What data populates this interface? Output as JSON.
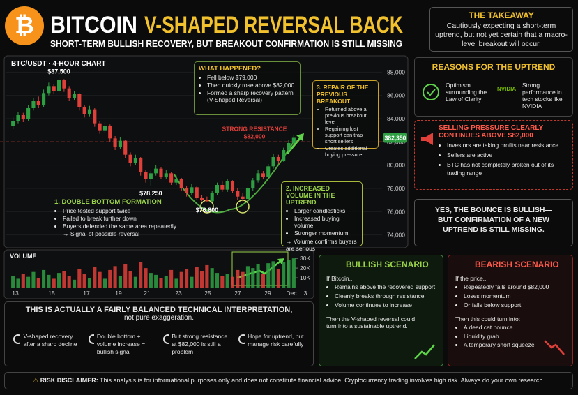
{
  "header": {
    "title_main": "BITCOIN",
    "title_accent": "V-SHAPED REVERSAL BACK",
    "subtitle": "SHORT-TERM BULLISH RECOVERY, BUT BREAKOUT CONFIRMATION IS STILL MISSING"
  },
  "takeaway": {
    "title": "THE TAKEAWAY",
    "text": "Cautiously expecting a short-term uptrend, but not yet certain that a macro-level breakout will occur."
  },
  "chart_data": {
    "type": "candlestick",
    "title": "BTC/USDT · 4-HOUR CHART",
    "up_color": "#2ea043",
    "down_color": "#e0403a",
    "grid": true,
    "ohlc": [
      [
        83400,
        84100,
        83100,
        83800
      ],
      [
        83800,
        84600,
        83600,
        84300
      ],
      [
        84300,
        84500,
        83700,
        84000
      ],
      [
        84000,
        85200,
        83800,
        84900
      ],
      [
        84900,
        85800,
        84700,
        85500
      ],
      [
        85500,
        85900,
        84900,
        85200
      ],
      [
        85200,
        86500,
        85000,
        86200
      ],
      [
        86200,
        87100,
        86000,
        86800
      ],
      [
        86800,
        87000,
        86100,
        86400
      ],
      [
        86400,
        87500,
        86200,
        87300
      ],
      [
        87300,
        87400,
        86300,
        86600
      ],
      [
        86600,
        86800,
        85500,
        85800
      ],
      [
        85800,
        86400,
        85600,
        86100
      ],
      [
        86100,
        86200,
        84700,
        85000
      ],
      [
        85000,
        85200,
        84100,
        84400
      ],
      [
        84400,
        85100,
        84200,
        84800
      ],
      [
        84800,
        84900,
        83300,
        83600
      ],
      [
        83600,
        83800,
        82700,
        83000
      ],
      [
        83000,
        83700,
        82800,
        83400
      ],
      [
        83400,
        83500,
        82000,
        82300
      ],
      [
        82300,
        82500,
        81300,
        81600
      ],
      [
        81600,
        82400,
        81400,
        82100
      ],
      [
        82100,
        82200,
        80600,
        80900
      ],
      [
        80900,
        81100,
        79900,
        80200
      ],
      [
        80200,
        80900,
        80000,
        80600
      ],
      [
        80600,
        80700,
        79100,
        79400
      ],
      [
        79400,
        79600,
        78500,
        78800
      ],
      [
        78800,
        79500,
        78250,
        79300
      ],
      [
        79300,
        80000,
        79100,
        79700
      ],
      [
        79700,
        79800,
        78800,
        79000
      ],
      [
        79000,
        79600,
        78800,
        79300
      ],
      [
        79300,
        79400,
        78300,
        78500
      ],
      [
        78500,
        79100,
        78300,
        78800
      ],
      [
        78800,
        78900,
        77800,
        78000
      ],
      [
        78000,
        78200,
        77300,
        77600
      ],
      [
        77600,
        78400,
        77400,
        78100
      ],
      [
        78100,
        78200,
        77000,
        77200
      ],
      [
        77200,
        77400,
        76900,
        77000
      ],
      [
        77000,
        77300,
        76800,
        76900
      ],
      [
        76900,
        77800,
        76850,
        77600
      ],
      [
        77600,
        78500,
        77400,
        78300
      ],
      [
        78300,
        78600,
        77700,
        77900
      ],
      [
        77900,
        78800,
        77700,
        78600
      ],
      [
        78600,
        78700,
        77600,
        77800
      ],
      [
        77800,
        78000,
        77000,
        77300
      ],
      [
        77300,
        77600,
        76900,
        77100
      ],
      [
        77100,
        78200,
        77000,
        78000
      ],
      [
        78000,
        78900,
        77800,
        78700
      ],
      [
        78700,
        79600,
        78500,
        79300
      ],
      [
        79300,
        79500,
        78800,
        79000
      ],
      [
        79000,
        80100,
        78900,
        79900
      ],
      [
        79900,
        81000,
        79700,
        80700
      ],
      [
        80700,
        80900,
        80100,
        80400
      ],
      [
        80400,
        81500,
        80300,
        81300
      ],
      [
        81300,
        82200,
        81100,
        81900
      ],
      [
        81900,
        82600,
        81700,
        82350
      ]
    ],
    "ylim": [
      73200,
      88800
    ],
    "yticks": [
      {
        "value": 74000,
        "label": "74,000"
      },
      {
        "value": 76000,
        "label": "76,000"
      },
      {
        "value": 78000,
        "label": "78,000"
      },
      {
        "value": 80000,
        "label": "80,000"
      },
      {
        "value": 82000,
        "label": "82,000"
      },
      {
        "value": 84000,
        "label": "84,000"
      },
      {
        "value": 86000,
        "label": "86,000"
      },
      {
        "value": 88000,
        "label": "88,000"
      }
    ],
    "resistance": {
      "value": 82000,
      "title": "STRONG RESISTANCE",
      "label": "$82,000",
      "color": "#e0403a"
    },
    "last_price": {
      "value": 82350,
      "label": "$82,350"
    },
    "annotations": [
      {
        "value": 87500,
        "label": "$87,500"
      },
      {
        "value": 78250,
        "label": "$78,250"
      },
      {
        "value": 76800,
        "label": "$76,800"
      }
    ],
    "x_labels": [
      "13",
      "15",
      "17",
      "19",
      "21",
      "23",
      "25",
      "27",
      "29",
      "Dec",
      "3"
    ],
    "volume": {
      "title": "VOLUME",
      "ylim": [
        0,
        33000
      ],
      "yticks": [
        {
          "value": 10000,
          "label": "10K"
        },
        {
          "value": 20000,
          "label": "20K"
        },
        {
          "value": 30000,
          "label": "30K"
        }
      ],
      "values": [
        12000,
        9000,
        14000,
        11000,
        16000,
        10000,
        18000,
        13000,
        9000,
        15000,
        17000,
        12000,
        8000,
        19000,
        14000,
        10000,
        21000,
        16000,
        9000,
        18000,
        22000,
        12000,
        24000,
        17000,
        11000,
        26000,
        20000,
        15000,
        13000,
        10000,
        12000,
        18000,
        9000,
        16000,
        19000,
        11000,
        21000,
        17000,
        23000,
        20000,
        15000,
        12000,
        14000,
        11000,
        18000,
        16000,
        22000,
        20000,
        24000,
        14000,
        25000,
        27000,
        19000,
        26000,
        28000,
        30000
      ]
    }
  },
  "what_happened": {
    "title": "WHAT HAPPENED?",
    "items": [
      "Fell below $79,000",
      "Then quickly rose above $82,000",
      "Formed a sharp recovery pattern (V-Shaped Reversal)"
    ]
  },
  "repair": {
    "title": "3. REPAIR OF THE PREVIOUS BREAKOUT",
    "items": [
      "Returned above a previous breakout level",
      "Regaining lost support can trap short sellers",
      "Creates additional buying pressure"
    ]
  },
  "volume_note": {
    "title": "2. INCREASED VOLUME IN THE UPTREND",
    "items": [
      "Larger candlesticks",
      "Increased buying volume",
      "Stronger momentum"
    ],
    "conclusion": "→ Volume confirms buyers are serious"
  },
  "double_bottom": {
    "title": "1. DOUBLE BOTTOM FORMATION",
    "items": [
      "Price tested support twice",
      "Failed to break further down",
      "Buyers defended the same area repeatedly"
    ],
    "conclusion": "→ Signal of possible reversal"
  },
  "reasons": {
    "title": "REASONS FOR THE UPTREND",
    "items": [
      "Optimism surrounding the Law of Clarity",
      "Strong performance in tech stocks like NVIDIA"
    ],
    "icon_label": "NVIDIA"
  },
  "selling": {
    "title": "SELLING PRESSURE CLEARLY CONTINUES ABOVE $82,000",
    "items": [
      "Investors are taking profits near resistance",
      "Sellers are active",
      "BTC has not completely broken out of its trading range"
    ]
  },
  "quote": {
    "text": "YES, THE BOUNCE IS BULLISH—BUT CONFIRMATION OF A NEW UPTREND IS STILL MISSING."
  },
  "balanced": {
    "title": "THIS IS ACTUALLY A FAIRLY BALANCED TECHNICAL INTERPRETATION,",
    "subtitle": "not pure exaggeration.",
    "items": [
      "V-shaped recovery after a sharp decline",
      "Double bottom + volume increase = bullish signal",
      "But strong resistance at $82,000 is still a problem",
      "Hope for uptrend, but manage risk carefully"
    ]
  },
  "bullish": {
    "title": "BULLISH SCENARIO",
    "intro": "If Bitcoin...",
    "items": [
      "Remains above the recovered support",
      "Cleanly breaks through resistance",
      "Volume continues to increase"
    ],
    "outcome": "Then the V-shaped reversal could turn into a sustainable uptrend."
  },
  "bearish": {
    "title": "BEARISH SCENARIO",
    "intro": "If the price...",
    "items": [
      "Repeatedly fails around $82,000",
      "Loses momentum",
      "Or falls below support"
    ],
    "outcome_intro": "Then this could turn into:",
    "outcomes": [
      "A dead cat bounce",
      "Liquidity grab",
      "A temporary short squeeze"
    ]
  },
  "disclaimer": {
    "label": "RISK DISCLAIMER:",
    "text": "This analysis is for informational purposes only and does not constitute financial advice. Cryptocurrency trading involves high risk. Always do your own research."
  }
}
